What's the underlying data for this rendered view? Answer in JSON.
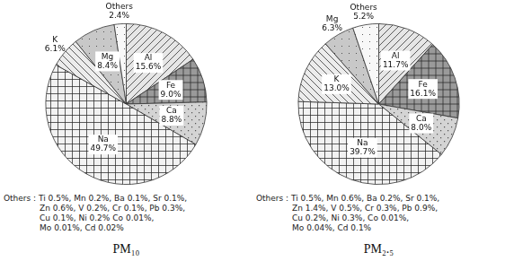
{
  "chart_data": [
    {
      "type": "pie",
      "title": "PM₁₀",
      "categories": [
        "Al",
        "Fe",
        "Ca",
        "Na",
        "K",
        "Mg",
        "Others"
      ],
      "values": [
        15.6,
        9.0,
        8.8,
        49.7,
        6.1,
        8.4,
        2.4
      ],
      "value_labels": [
        "15.6%",
        "9.0%",
        "8.8%",
        "49.7%",
        "6.1%",
        "8.4%",
        "2.4%"
      ],
      "colors": [
        "#e6e6e6",
        "#9a9a9a",
        "#d4d4d4",
        "#f2f2f2",
        "#ececec",
        "#c8c8c8",
        "#f8f8f8"
      ],
      "data_labels": true,
      "annotations": [
        "Others : Ti 0.5%, Mn 0.2%, Ba 0.1%, Sr 0.1%,",
        "Zn 0.6%, V 0.2%, Cr 0.1%, Pb 0.3%,",
        "Cu 0.1%, Ni 0.2% Co 0.01%,",
        "Mo 0.01%, Cd 0.02%"
      ]
    },
    {
      "type": "pie",
      "title": "PM₂.₅",
      "categories": [
        "Al",
        "Fe",
        "Ca",
        "Na",
        "K",
        "Mg",
        "Others"
      ],
      "values": [
        11.7,
        16.1,
        8.0,
        39.7,
        13.0,
        6.3,
        5.2
      ],
      "value_labels": [
        "11.7%",
        "16.1%",
        "8.0%",
        "39.7%",
        "13.0%",
        "6.3%",
        "5.2%"
      ],
      "colors": [
        "#e6e6e6",
        "#9a9a9a",
        "#d4d4d4",
        "#f2f2f2",
        "#ececec",
        "#c8c8c8",
        "#f8f8f8"
      ],
      "data_labels": true,
      "annotations": [
        "Others : Ti 0.5%, Mn 0.6%, Ba 0.2%, Sr 0.1%,",
        "Zn 1.4%, V 0.5%, Cr 0.3%, Pb 0.9%,",
        "Cu 0.2%, Ni 0.3%, Co 0.01%,",
        "Mo 0.04%, Cd 0.1%"
      ]
    }
  ]
}
